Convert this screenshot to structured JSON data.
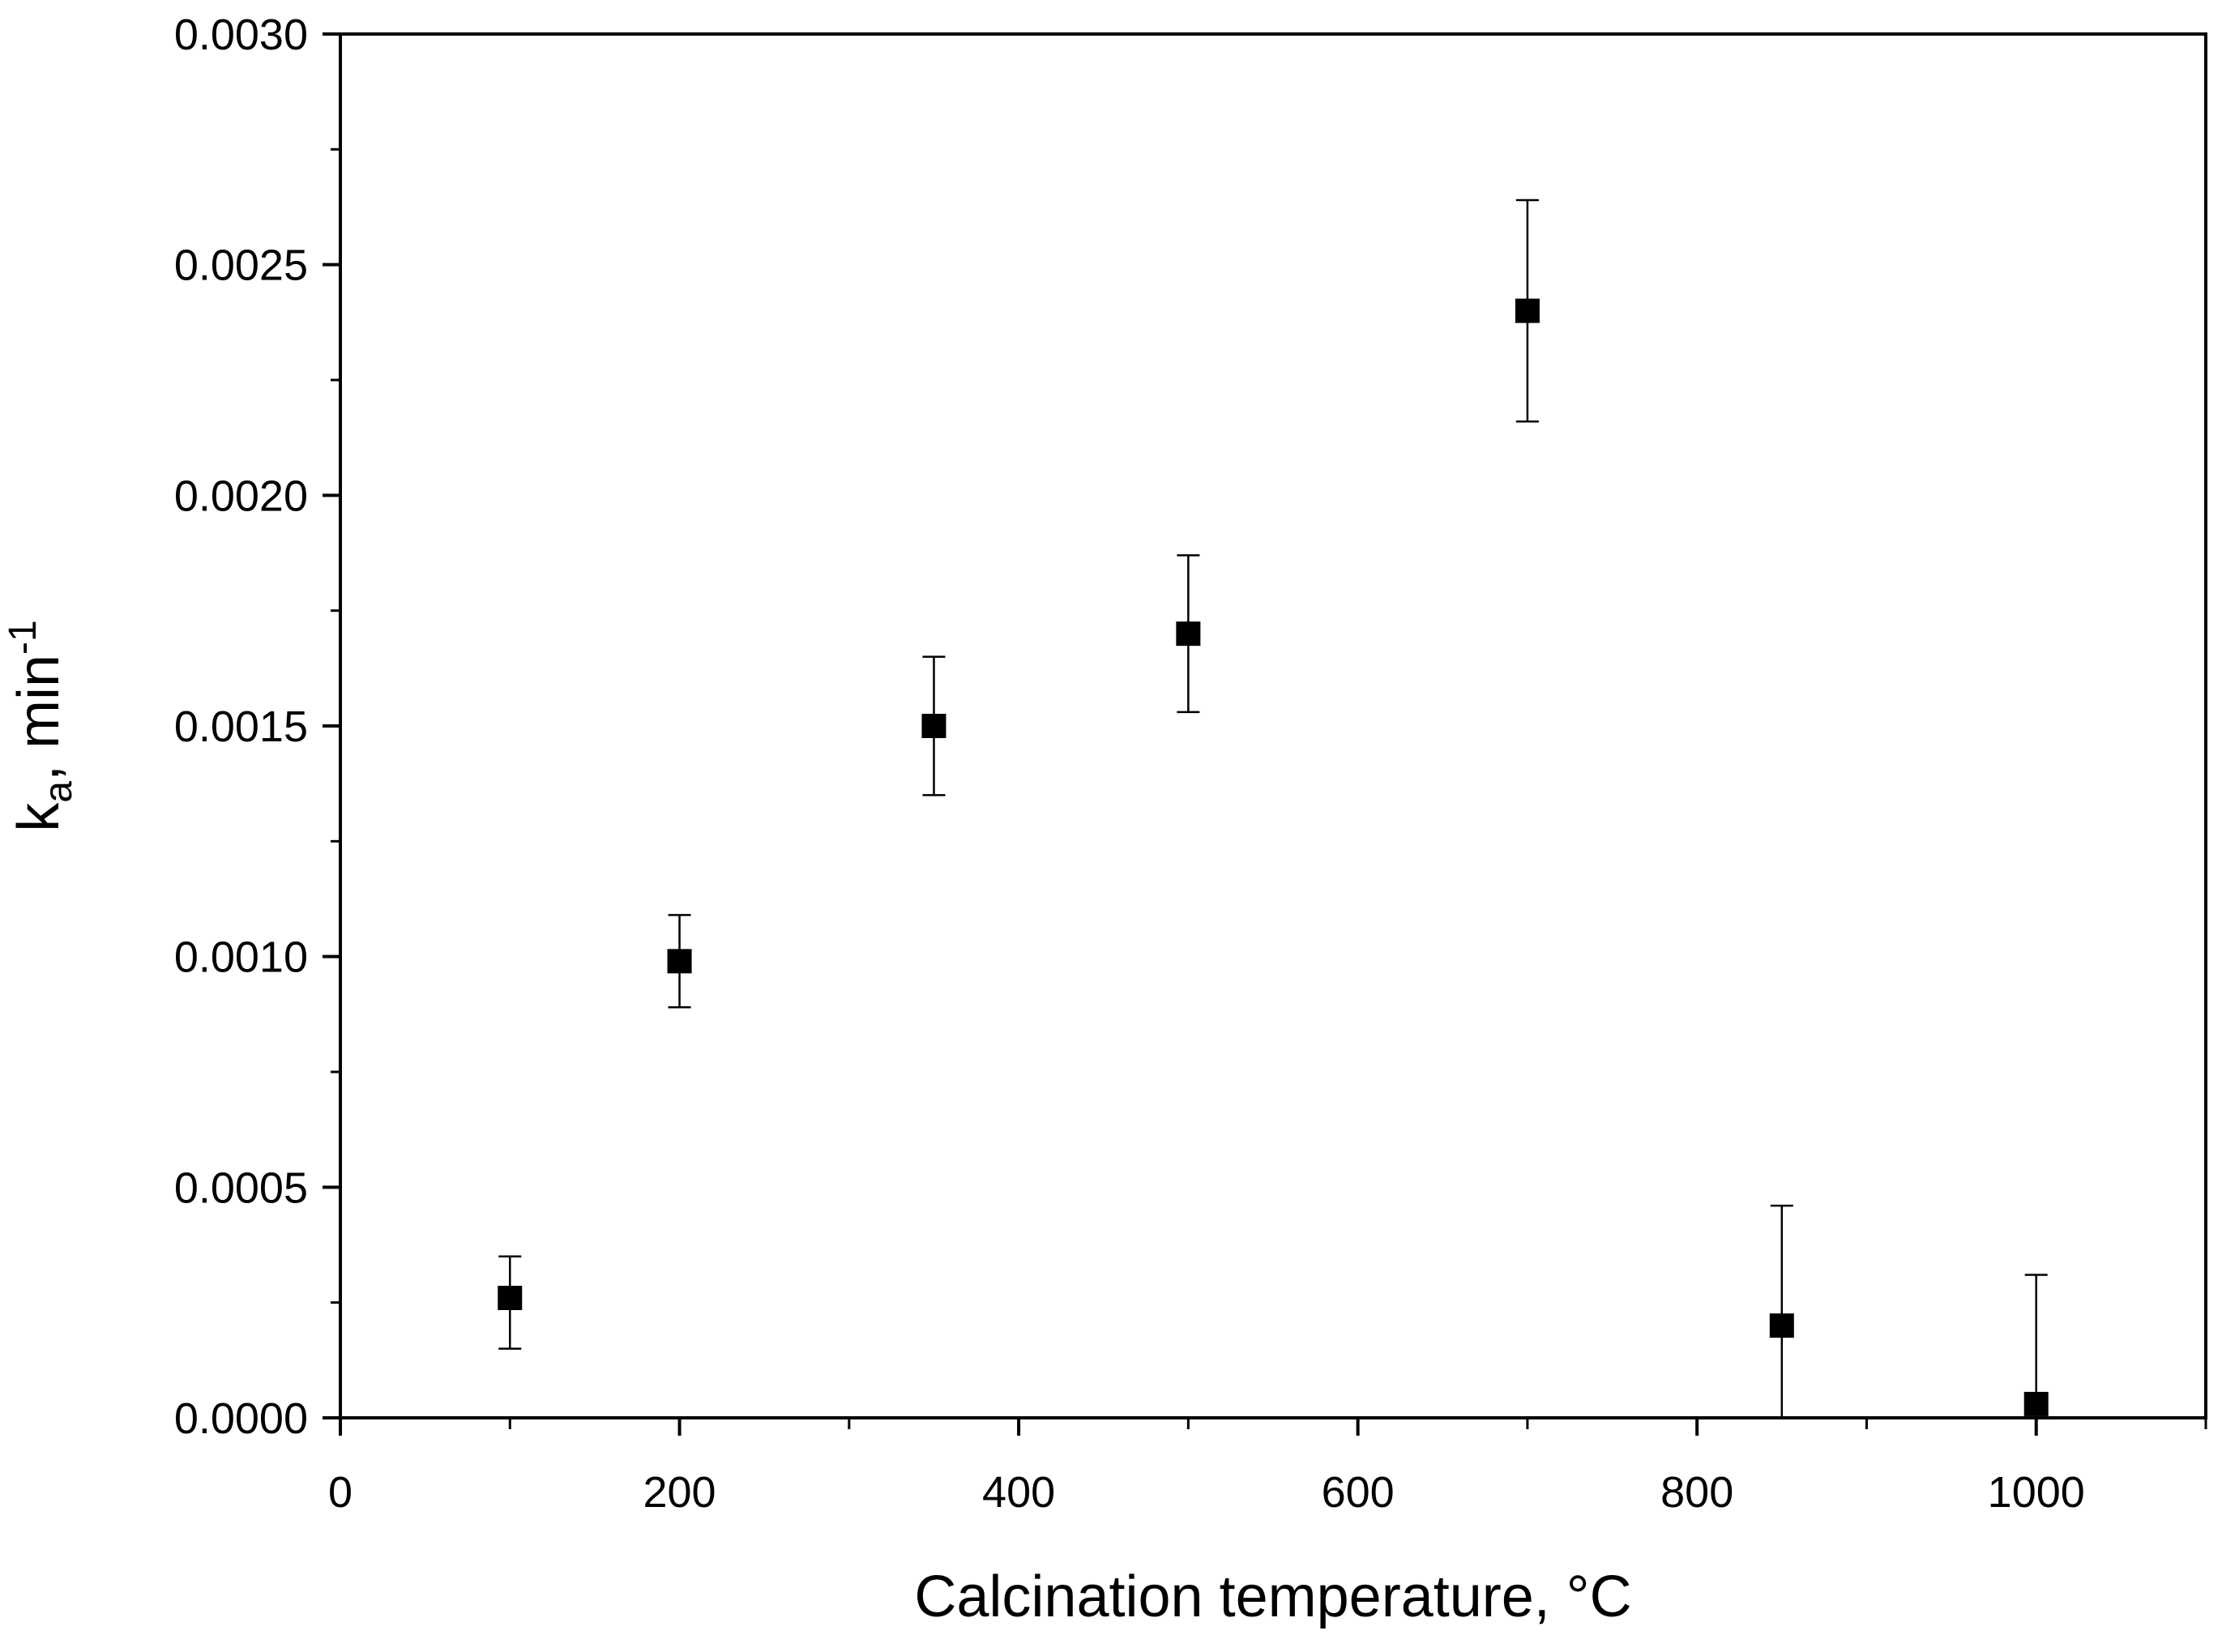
{
  "chart_data": {
    "type": "scatter",
    "title": "",
    "xlabel": "Calcination temperature, °C",
    "ylabel": {
      "base": "k",
      "subscript": "a",
      "middle": ", min",
      "superscript": "-1"
    },
    "xlim": [
      0,
      1100
    ],
    "ylim": [
      0,
      0.003
    ],
    "x_ticks": [
      {
        "value": 0,
        "label": "0"
      },
      {
        "value": 200,
        "label": "200"
      },
      {
        "value": 400,
        "label": "400"
      },
      {
        "value": 600,
        "label": "600"
      },
      {
        "value": 800,
        "label": "800"
      },
      {
        "value": 1000,
        "label": "1000"
      }
    ],
    "x_minor_ticks": [
      100,
      300,
      500,
      700,
      900,
      1100
    ],
    "y_ticks": [
      {
        "value": 0,
        "label": "0.0000"
      },
      {
        "value": 0.0005,
        "label": "0.0005"
      },
      {
        "value": 0.001,
        "label": "0.0010"
      },
      {
        "value": 0.0015,
        "label": "0.0015"
      },
      {
        "value": 0.002,
        "label": "0.0020"
      },
      {
        "value": 0.0025,
        "label": "0.0025"
      },
      {
        "value": 0.003,
        "label": "0.0030"
      }
    ],
    "y_minor_ticks": [
      0.00025,
      0.00075,
      0.00125,
      0.00175,
      0.00225,
      0.00275
    ],
    "grid": false,
    "marker": "square",
    "color": "#000000",
    "points": [
      {
        "x": 100,
        "y": 0.00026,
        "err_low": 0.00015,
        "err_high": 0.00035
      },
      {
        "x": 200,
        "y": 0.00099,
        "err_low": 0.00089,
        "err_high": 0.00109
      },
      {
        "x": 350,
        "y": 0.0015,
        "err_low": 0.00135,
        "err_high": 0.00165
      },
      {
        "x": 500,
        "y": 0.0017,
        "err_low": 0.00153,
        "err_high": 0.00187
      },
      {
        "x": 700,
        "y": 0.0024,
        "err_low": 0.00216,
        "err_high": 0.00264
      },
      {
        "x": 850,
        "y": 0.0002,
        "err_low": 0.0,
        "err_high": 0.00046
      },
      {
        "x": 1000,
        "y": 3e-05,
        "err_low": 0.0,
        "err_high": 0.00031
      }
    ]
  }
}
